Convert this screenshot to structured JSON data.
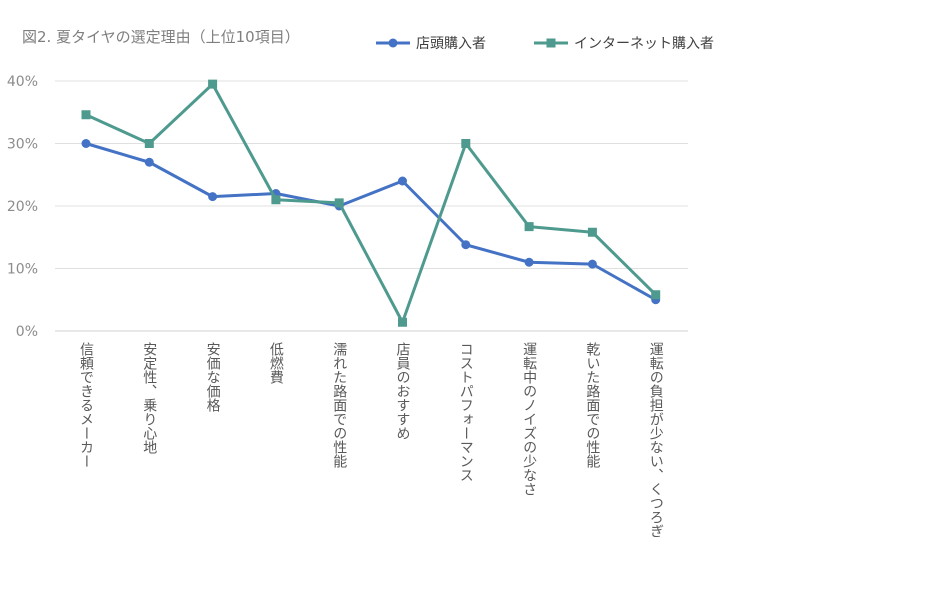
{
  "chart_data": {
    "type": "line",
    "title": "図2. 夏タイヤの選定理由（上位10項目）",
    "categories": [
      "信頼できるメーカー",
      "安定性、乗り心地",
      "安価な価格",
      "低燃費",
      "濡れた路面での性能",
      "店員のおすすめ",
      "コストパフォーマンス",
      "運転中のノイズの少なさ",
      "乾いた路面での性能",
      "運転の負担が少ない、くつろぎ"
    ],
    "series": [
      {
        "name": "店頭購入者",
        "color": "#4472c4",
        "marker": "circle",
        "values": [
          30.0,
          27.0,
          21.5,
          22.0,
          20.0,
          24.0,
          13.8,
          11.0,
          10.7,
          5.0
        ]
      },
      {
        "name": "インターネット購入者",
        "color": "#4e9a8e",
        "marker": "square",
        "values": [
          34.6,
          30.0,
          39.5,
          21.0,
          20.5,
          1.4,
          30.0,
          16.7,
          15.8,
          5.8
        ]
      }
    ],
    "y_ticks": [
      "0%",
      "10%",
      "20%",
      "30%",
      "40%"
    ],
    "ylim": [
      0,
      40
    ],
    "grid": true,
    "legend_position": "top"
  }
}
